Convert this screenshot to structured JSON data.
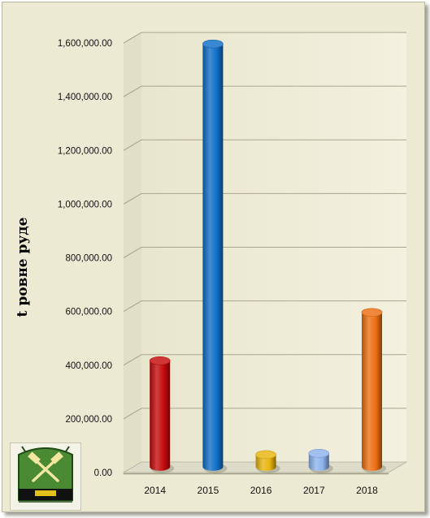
{
  "chart_data": {
    "type": "bar",
    "categories": [
      "2014",
      "2015",
      "2016",
      "2017",
      "2018"
    ],
    "values": [
      395000,
      1575000,
      45000,
      50000,
      575000
    ],
    "colors": [
      "#c40a0a",
      "#0f6ec8",
      "#e8b40c",
      "#8cb2ec",
      "#ec6e10"
    ],
    "ylim": [
      0,
      1600000
    ],
    "yticks": [
      "0.00",
      "200,000.00",
      "400,000.00",
      "600,000.00",
      "800,000.00",
      "1,000,000.00",
      "1,200,000.00",
      "1,400,000.00",
      "1,600,000.00"
    ],
    "ylabel": "t ровне руде",
    "xlabel": "",
    "title": "",
    "grid": true,
    "style": "3d-cylinder"
  },
  "theme": {
    "background": "#edead3",
    "gridline": "#a9a690",
    "floor": "#dddcc8"
  },
  "logo": {
    "icon": "hammer-and-pick-emblem"
  }
}
